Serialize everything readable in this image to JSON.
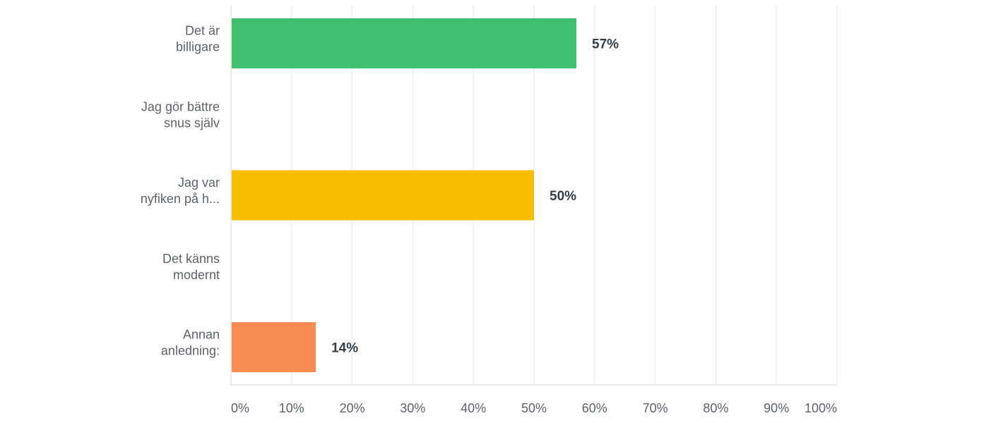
{
  "chart_data": {
    "type": "bar",
    "orientation": "horizontal",
    "categories": [
      [
        "Det är",
        "billigare"
      ],
      [
        "Jag gör bättre",
        "snus själv"
      ],
      [
        "Jag var",
        "nyfiken på h..."
      ],
      [
        "Det känns",
        "modernt"
      ],
      [
        "Annan",
        "anledning:"
      ]
    ],
    "values": [
      57,
      0,
      50,
      0,
      14
    ],
    "data_labels": [
      "57%",
      "",
      "50%",
      "",
      "14%"
    ],
    "bar_colors": [
      "#40bf6e",
      "#6b4fbb",
      "#f7bf00",
      "#4aa3df",
      "#f78b50"
    ],
    "xlim": [
      0,
      100
    ],
    "ticks": [
      "0%",
      "10%",
      "20%",
      "30%",
      "40%",
      "50%",
      "60%",
      "70%",
      "80%",
      "90%",
      "100%"
    ],
    "grid": true,
    "gridline_color": "#e6e8ea",
    "axis_color": "#ced2d6",
    "title": "",
    "xlabel": "",
    "ylabel": ""
  }
}
